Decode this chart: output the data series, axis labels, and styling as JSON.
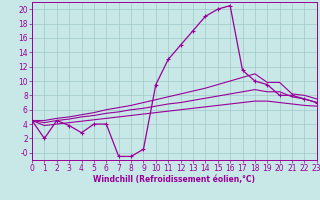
{
  "xlabel": "Windchill (Refroidissement éolien,°C)",
  "bg_color": "#c8e8e8",
  "line_color": "#990099",
  "xlim": [
    0,
    23
  ],
  "ylim": [
    -1,
    21
  ],
  "xticks": [
    0,
    1,
    2,
    3,
    4,
    5,
    6,
    7,
    8,
    9,
    10,
    11,
    12,
    13,
    14,
    15,
    16,
    17,
    18,
    19,
    20,
    21,
    22,
    23
  ],
  "yticks": [
    0,
    2,
    4,
    6,
    8,
    10,
    12,
    14,
    16,
    18,
    20
  ],
  "x": [
    0,
    1,
    2,
    3,
    4,
    5,
    6,
    7,
    8,
    9,
    10,
    11,
    12,
    13,
    14,
    15,
    16,
    17,
    18,
    19,
    20,
    21,
    22,
    23
  ],
  "y_main": [
    4.5,
    2.0,
    4.5,
    3.8,
    2.8,
    4.0,
    4.0,
    -0.5,
    -0.5,
    0.5,
    9.5,
    13.0,
    15.0,
    17.0,
    19.0,
    20.0,
    20.5,
    11.5,
    10.0,
    9.5,
    8.0,
    8.0,
    7.5,
    7.0
  ],
  "y_line_top": [
    4.5,
    4.5,
    4.8,
    5.0,
    5.3,
    5.6,
    6.0,
    6.3,
    6.6,
    7.0,
    7.4,
    7.8,
    8.2,
    8.6,
    9.0,
    9.5,
    10.0,
    10.5,
    11.0,
    9.8,
    9.8,
    8.2,
    8.0,
    7.5
  ],
  "y_line_mid": [
    4.5,
    4.2,
    4.5,
    4.7,
    5.0,
    5.2,
    5.5,
    5.7,
    6.0,
    6.2,
    6.5,
    6.8,
    7.0,
    7.3,
    7.6,
    7.9,
    8.2,
    8.5,
    8.8,
    8.5,
    8.5,
    7.8,
    7.5,
    7.0
  ],
  "y_line_bot": [
    4.5,
    3.8,
    4.0,
    4.2,
    4.4,
    4.6,
    4.8,
    5.0,
    5.2,
    5.4,
    5.6,
    5.8,
    6.0,
    6.2,
    6.4,
    6.6,
    6.8,
    7.0,
    7.2,
    7.2,
    7.0,
    6.8,
    6.6,
    6.5
  ],
  "grid_color": "#a0c8c8",
  "marker": "+"
}
